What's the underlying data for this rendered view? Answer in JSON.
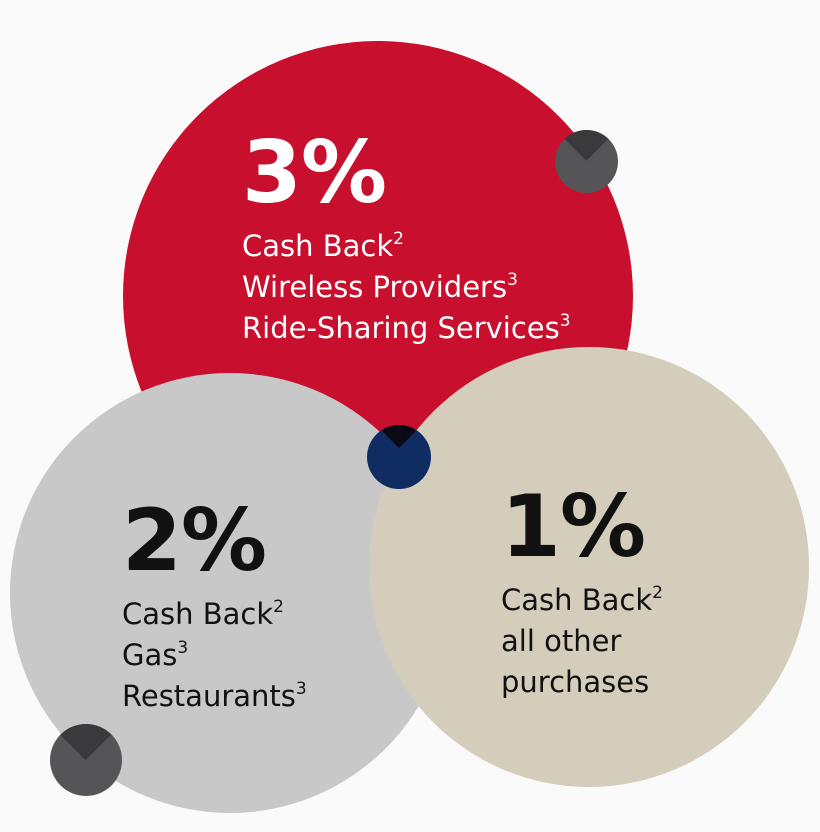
{
  "colors": {
    "red": "#c8102e",
    "gray": "#c8c8c8",
    "tan": "#d4cdbc",
    "dark_dot": "#555557",
    "navy_dot": "#0f2d63"
  },
  "tiers": {
    "red": {
      "percent": "3%",
      "lines": [
        {
          "text": "Cash Back",
          "sup": "2"
        },
        {
          "text": "Wireless Providers",
          "sup": "3"
        },
        {
          "text": "Ride-Sharing Services",
          "sup": "3"
        }
      ]
    },
    "gray": {
      "percent": "2%",
      "lines": [
        {
          "text": "Cash Back",
          "sup": "2"
        },
        {
          "text": "Gas",
          "sup": "3"
        },
        {
          "text": "Restaurants",
          "sup": "3"
        }
      ]
    },
    "tan": {
      "percent": "1%",
      "lines": [
        {
          "text": "Cash Back",
          "sup": "2"
        },
        {
          "text": "all other",
          "sup": ""
        },
        {
          "text": "purchases",
          "sup": ""
        }
      ]
    }
  }
}
